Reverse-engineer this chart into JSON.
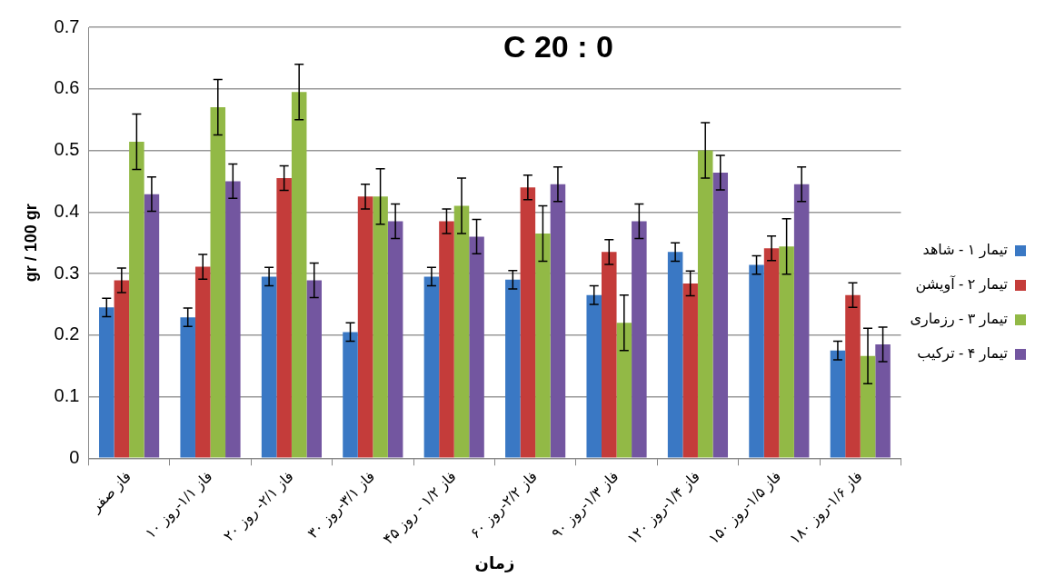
{
  "chart_data": {
    "type": "bar",
    "title": "C 20 : 0",
    "xlabel": "زمان",
    "ylabel": "gr / 100 gr",
    "categories": [
      "فاز صفر",
      "فاز ۱/۱-روز ۱۰",
      "فاز ۲/۱- روز ۲۰",
      "فاز ۳/۱-روز ۳۰",
      "فاز ۱/۲ - روز ۴۵",
      "فاز ۲/۲-روز ۶۰",
      "فاز ۱/۳-روز ۹۰",
      "فاز ۱/۴-روز ۱۲۰",
      "فاز ۱/۵-روز ۱۵۰",
      "فاز ۱/۶-روز ۱۸۰"
    ],
    "series": [
      {
        "name": "تیمار ۱ - شاهد",
        "color": "#3a78c4",
        "values": [
          0.245,
          0.229,
          0.295,
          0.205,
          0.295,
          0.29,
          0.265,
          0.335,
          0.314,
          0.175
        ],
        "errors": [
          0.015,
          0.015,
          0.015,
          0.015,
          0.015,
          0.015,
          0.015,
          0.015,
          0.015,
          0.015
        ]
      },
      {
        "name": "تیمار ۲ - آویشن",
        "color": "#c43c3a",
        "values": [
          0.289,
          0.311,
          0.455,
          0.425,
          0.385,
          0.44,
          0.335,
          0.284,
          0.341,
          0.265
        ],
        "errors": [
          0.02,
          0.02,
          0.02,
          0.02,
          0.02,
          0.02,
          0.02,
          0.02,
          0.02,
          0.02
        ]
      },
      {
        "name": "تیمار ۳ - رزماری",
        "color": "#92b946",
        "values": [
          0.514,
          0.57,
          0.595,
          0.425,
          0.41,
          0.365,
          0.22,
          0.5,
          0.344,
          0.166
        ],
        "errors": [
          0.045,
          0.045,
          0.045,
          0.045,
          0.045,
          0.045,
          0.045,
          0.045,
          0.045,
          0.045
        ]
      },
      {
        "name": "تیمار ۴ - ترکیب",
        "color": "#7356a0",
        "values": [
          0.429,
          0.45,
          0.289,
          0.385,
          0.36,
          0.445,
          0.385,
          0.464,
          0.445,
          0.185
        ],
        "errors": [
          0.028,
          0.028,
          0.028,
          0.028,
          0.028,
          0.028,
          0.028,
          0.028,
          0.028,
          0.028
        ]
      }
    ],
    "ylim": [
      0,
      0.7
    ],
    "yticks": [
      0,
      0.1,
      0.2,
      0.3,
      0.4,
      0.5,
      0.6,
      0.7
    ],
    "grid": "y",
    "legend": "right"
  }
}
